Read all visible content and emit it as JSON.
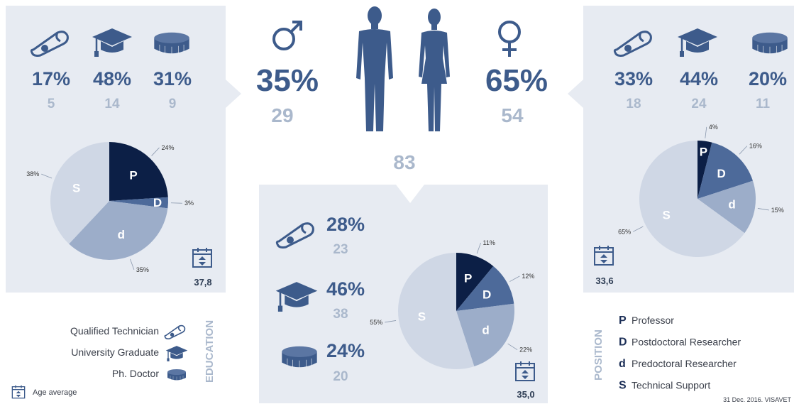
{
  "left_panel": {
    "stats": [
      {
        "percent": "17%",
        "count": "5"
      },
      {
        "percent": "48%",
        "count": "14"
      },
      {
        "percent": "31%",
        "count": "9"
      }
    ],
    "age_average": "37,8"
  },
  "center": {
    "male": {
      "percent": "35%",
      "count": "29"
    },
    "female": {
      "percent": "65%",
      "count": "54"
    },
    "total": "83",
    "stats": [
      {
        "percent": "28%",
        "count": "23"
      },
      {
        "percent": "46%",
        "count": "38"
      },
      {
        "percent": "24%",
        "count": "20"
      }
    ],
    "age_average": "35,0"
  },
  "right_panel": {
    "stats": [
      {
        "percent": "33%",
        "count": "18"
      },
      {
        "percent": "44%",
        "count": "24"
      },
      {
        "percent": "20%",
        "count": "11"
      }
    ],
    "age_average": "33,6"
  },
  "education_legend": {
    "title": "EDUCATION",
    "items": [
      "Qualified Technician",
      "University Graduate",
      "Ph. Doctor"
    ]
  },
  "position_legend": {
    "title": "POSITION",
    "items": [
      {
        "letter": "P",
        "label": "Professor"
      },
      {
        "letter": "D",
        "label": "Postdoctoral Researcher"
      },
      {
        "letter": "d",
        "label": "Predoctoral Researcher"
      },
      {
        "letter": "S",
        "label": "Technical Support"
      }
    ]
  },
  "age_legend": "Age average",
  "footer": "31 Dec. 2016. VISAVET",
  "chart_data": [
    {
      "type": "pie",
      "categories": [
        "P",
        "D",
        "d",
        "S"
      ],
      "values": [
        24,
        3,
        35,
        38
      ],
      "value_labels": [
        "24%",
        "3%",
        "35%",
        "38%"
      ],
      "colors": [
        "#0c1f46",
        "#4d6a9a",
        "#9cadc9",
        "#cfd7e5"
      ]
    },
    {
      "type": "pie",
      "categories": [
        "P",
        "D",
        "d",
        "S"
      ],
      "values": [
        11,
        12,
        22,
        55
      ],
      "value_labels": [
        "11%",
        "12%",
        "22%",
        "55%"
      ],
      "colors": [
        "#0c1f46",
        "#4d6a9a",
        "#9cadc9",
        "#cfd7e5"
      ]
    },
    {
      "type": "pie",
      "categories": [
        "P",
        "D",
        "d",
        "S"
      ],
      "values": [
        4,
        16,
        15,
        65
      ],
      "value_labels": [
        "4%",
        "16%",
        "15%",
        "65%"
      ],
      "colors": [
        "#0c1f46",
        "#4d6a9a",
        "#9cadc9",
        "#cfd7e5"
      ]
    }
  ]
}
